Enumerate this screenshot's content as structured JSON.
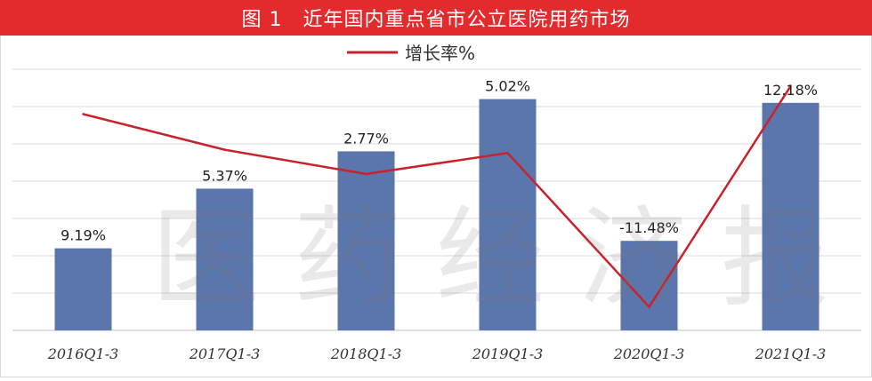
{
  "chart_data": {
    "type": "bar",
    "title": "图 1　近年国内重点省市公立医院用药市场",
    "watermark": "医药经济报",
    "categories": [
      "2016Q1-3",
      "2017Q1-3",
      "2018Q1-3",
      "2019Q1-3",
      "2020Q1-3",
      "2021Q1-3"
    ],
    "series": [
      {
        "name": "",
        "kind": "bar",
        "values": [
          2.2,
          3.8,
          4.8,
          6.2,
          2.4,
          6.1
        ]
      },
      {
        "name": "增长率%",
        "kind": "line",
        "values": [
          9.19,
          5.37,
          2.77,
          5.02,
          -11.48,
          12.18
        ]
      }
    ],
    "data_labels": [
      "9.19%",
      "5.37%",
      "2.77%",
      "5.02%",
      "-11.48%",
      "12.18%"
    ],
    "bar_axis_range": [
      0,
      7
    ],
    "line_axis_range": [
      -14,
      14
    ],
    "legend_position": "top",
    "grid": true,
    "colors": {
      "bar": "#5b76ad",
      "line": "#c8232c",
      "title_bg": "#e32b2e",
      "grid": "#d9d9d9"
    }
  }
}
